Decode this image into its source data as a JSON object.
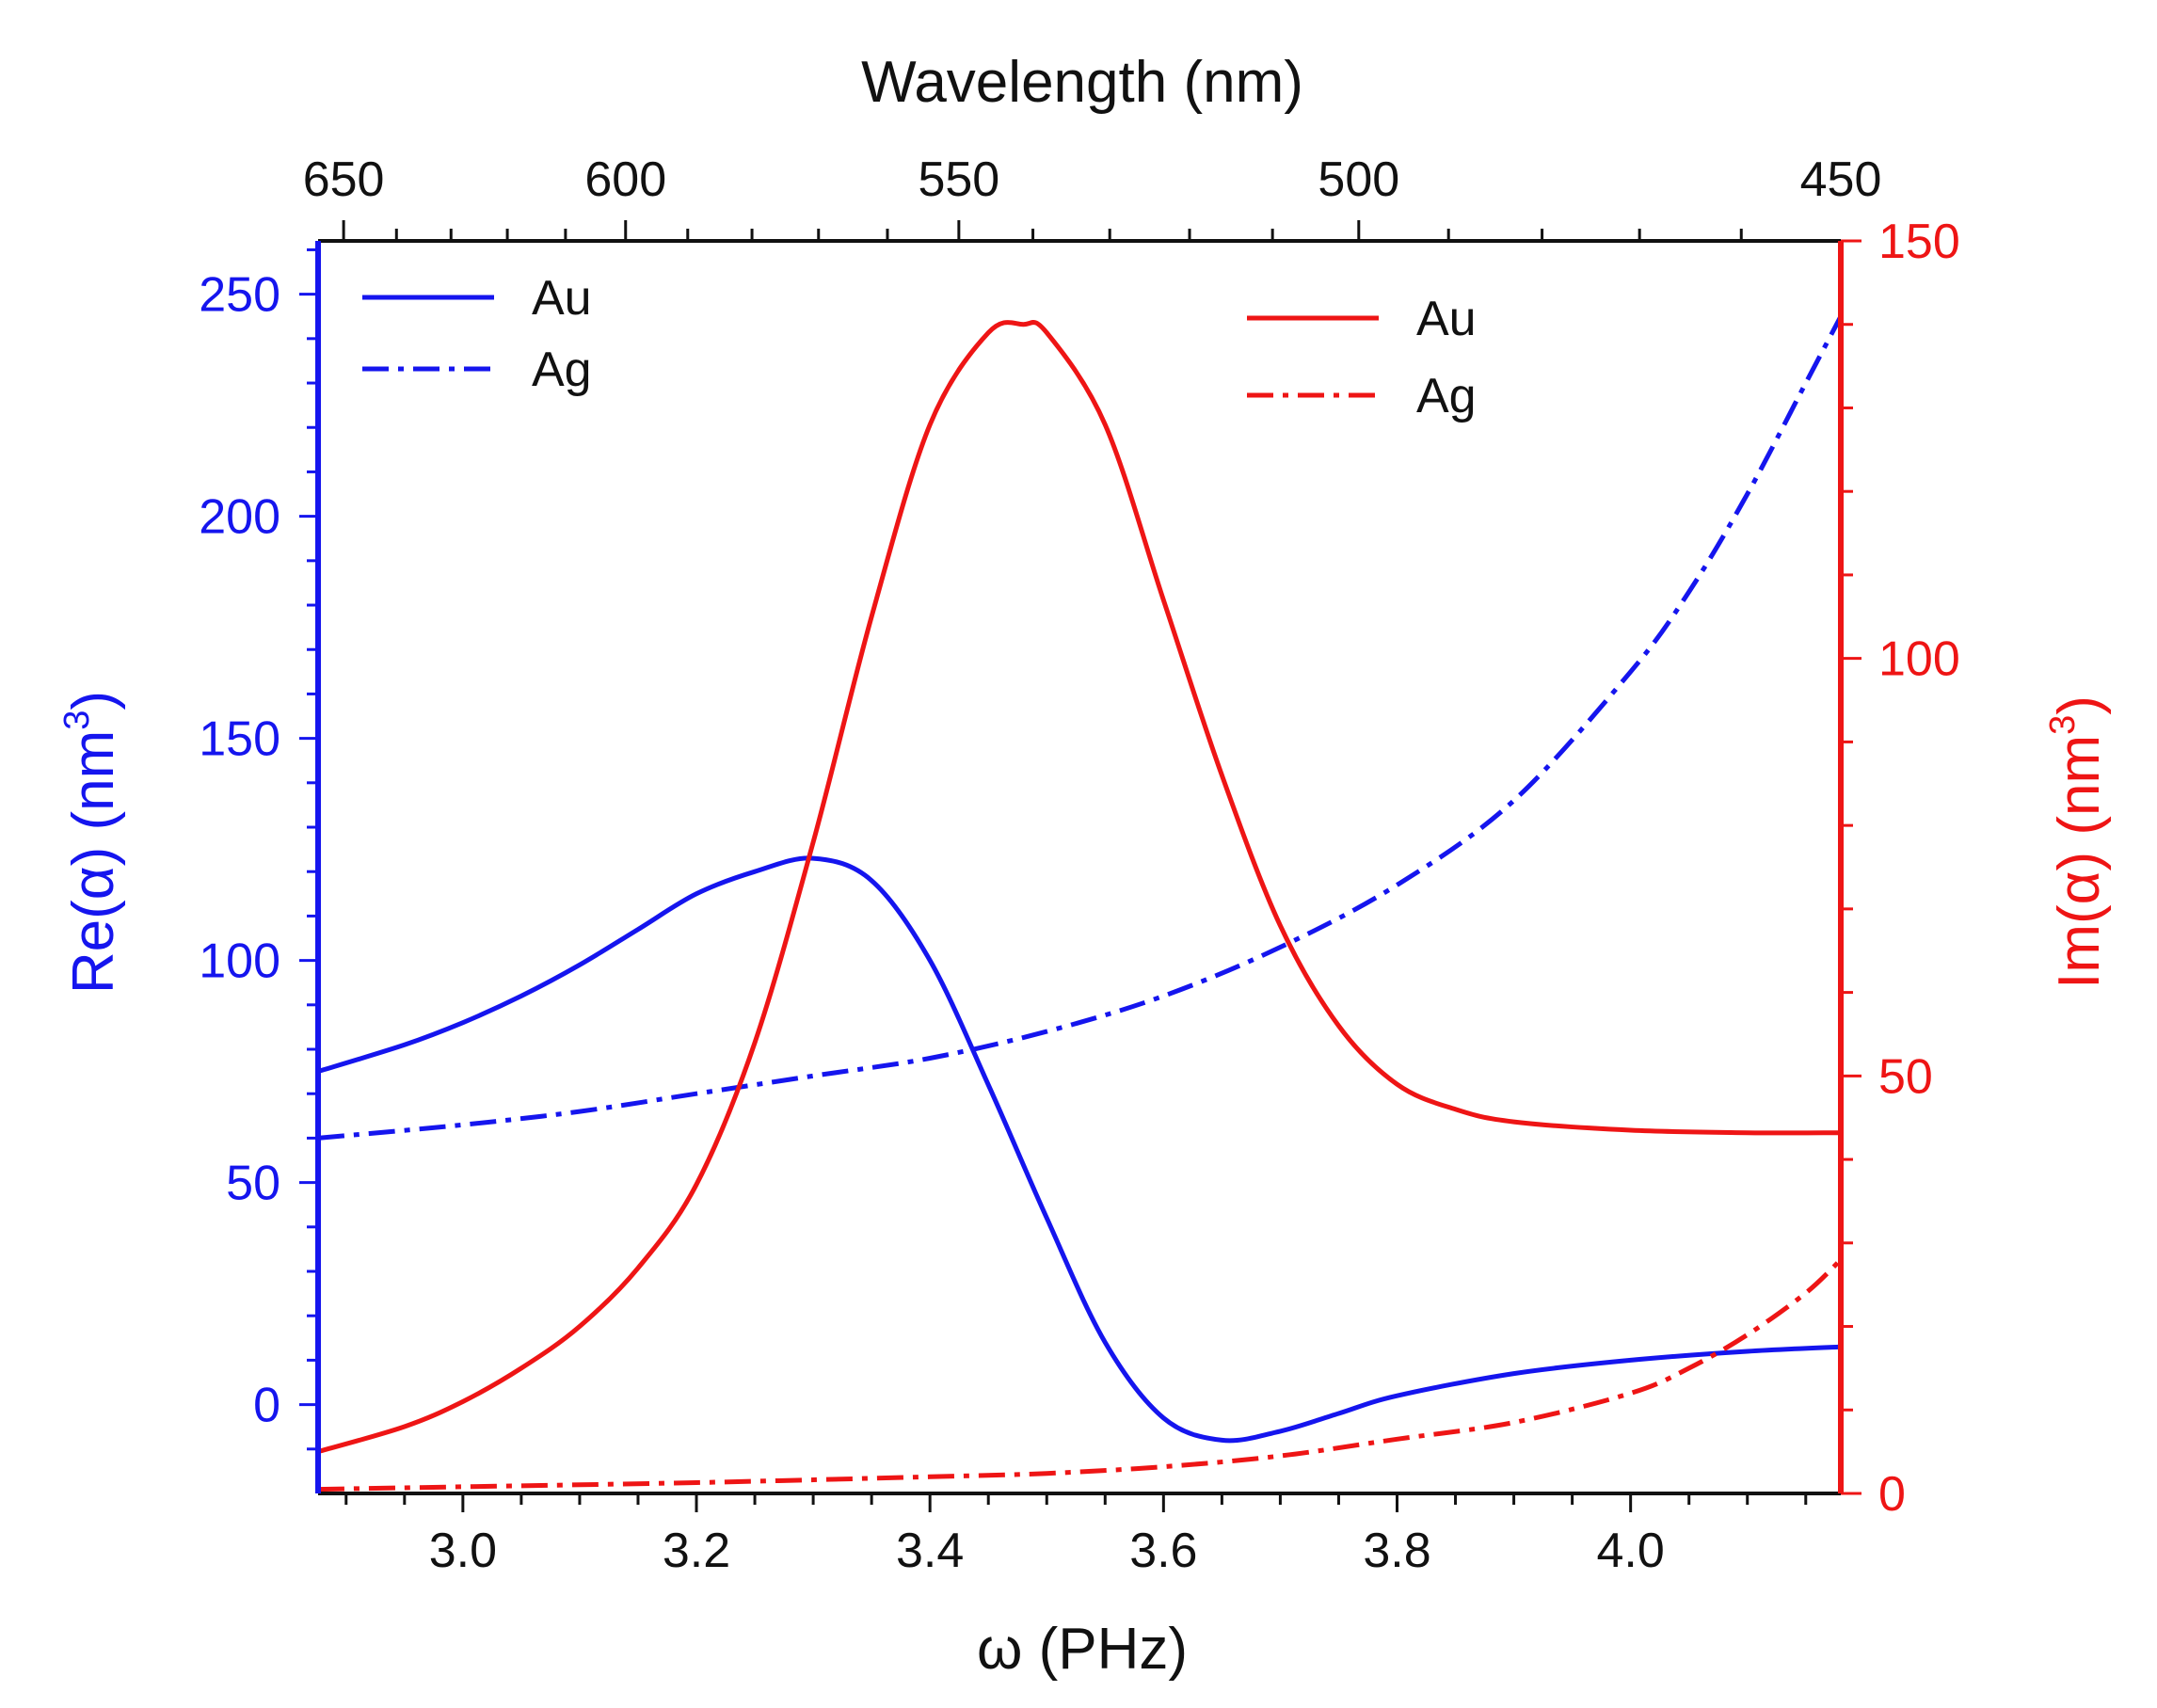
{
  "chart_data": {
    "type": "line",
    "title": "",
    "xlabel": "ω (PHz)",
    "xlim": [
      2.876,
      4.18
    ],
    "xticks": [
      3.0,
      3.2,
      3.4,
      3.6,
      3.8,
      4.0
    ],
    "xtick_labels": [
      "3.0",
      "3.2",
      "3.4",
      "3.6",
      "3.8",
      "4.0"
    ],
    "top_axis": {
      "label": "Wavelength (nm)",
      "ticks": [
        650,
        600,
        550,
        500,
        450
      ],
      "tick_labels": [
        "650",
        "600",
        "550",
        "500",
        "450"
      ],
      "conversion_note": "wavelength = 1883.6 / omega"
    },
    "y_left": {
      "label_main": "Re(α) (nm",
      "label_sup": "3",
      "label_end": ")",
      "color": "#1515ee",
      "ylim": [
        -20,
        262
      ],
      "ticks": [
        0,
        50,
        100,
        150,
        200,
        250
      ],
      "tick_labels": [
        "0",
        "50",
        "100",
        "150",
        "200",
        "250"
      ]
    },
    "y_right": {
      "label_main": "Im(α) (nm",
      "label_sup": "3",
      "label_end": ")",
      "color": "#ee1515",
      "ylim": [
        0,
        150
      ],
      "ticks": [
        0,
        50,
        100,
        150
      ],
      "tick_labels": [
        "0",
        "50",
        "100",
        "150"
      ]
    },
    "series": [
      {
        "name": "Au",
        "axis": "left",
        "color": "#1515ee",
        "dash": "solid",
        "x": [
          2.876,
          2.95,
          3.0,
          3.05,
          3.1,
          3.15,
          3.2,
          3.25,
          3.3,
          3.35,
          3.4,
          3.45,
          3.5,
          3.55,
          3.6,
          3.65,
          3.7,
          3.75,
          3.8,
          3.9,
          4.0,
          4.1,
          4.18
        ],
        "y": [
          75,
          81,
          86,
          92,
          99,
          107,
          115,
          120,
          123,
          118,
          100,
          72,
          42,
          14,
          -3,
          -8,
          -6,
          -2,
          2,
          7,
          10,
          12,
          13
        ]
      },
      {
        "name": "Ag",
        "axis": "left",
        "color": "#1515ee",
        "dash": "dashdot",
        "x": [
          2.876,
          3.0,
          3.1,
          3.2,
          3.3,
          3.4,
          3.5,
          3.6,
          3.7,
          3.8,
          3.9,
          4.0,
          4.05,
          4.1,
          4.15,
          4.18
        ],
        "y": [
          60,
          63,
          66,
          70,
          74,
          78,
          84,
          92,
          103,
          117,
          136,
          165,
          183,
          205,
          230,
          245
        ]
      },
      {
        "name": "Au",
        "axis": "right",
        "color": "#ee1515",
        "dash": "solid",
        "x": [
          2.876,
          2.95,
          3.0,
          3.05,
          3.1,
          3.15,
          3.2,
          3.25,
          3.3,
          3.35,
          3.4,
          3.45,
          3.48,
          3.5,
          3.55,
          3.6,
          3.65,
          3.7,
          3.75,
          3.8,
          3.85,
          3.9,
          4.0,
          4.1,
          4.18
        ],
        "y": [
          5,
          8,
          11,
          15,
          20,
          27,
          37,
          54,
          78,
          105,
          128,
          139,
          140,
          139,
          128,
          107,
          86,
          68,
          56,
          49,
          46,
          44.5,
          43.5,
          43.2,
          43.2
        ]
      },
      {
        "name": "Ag",
        "axis": "right",
        "color": "#ee1515",
        "dash": "dashdot",
        "x": [
          2.876,
          3.0,
          3.2,
          3.4,
          3.5,
          3.6,
          3.7,
          3.8,
          3.9,
          4.0,
          4.05,
          4.1,
          4.15,
          4.18
        ],
        "y": [
          0.5,
          0.8,
          1.3,
          2.0,
          2.4,
          3.2,
          4.5,
          6.5,
          8.5,
          12,
          15,
          19,
          24,
          28
        ]
      }
    ],
    "legend_left": {
      "title": "",
      "entries": [
        {
          "label": "Au",
          "dash": "solid",
          "color": "#1515ee"
        },
        {
          "label": "Ag",
          "dash": "dashdot",
          "color": "#1515ee"
        }
      ]
    },
    "legend_right": {
      "title": "",
      "entries": [
        {
          "label": "Au",
          "dash": "solid",
          "color": "#ee1515"
        },
        {
          "label": "Ag",
          "dash": "dashdot",
          "color": "#ee1515"
        }
      ]
    },
    "legend_placement": "top-left and top-right inside plot",
    "grid": false
  }
}
